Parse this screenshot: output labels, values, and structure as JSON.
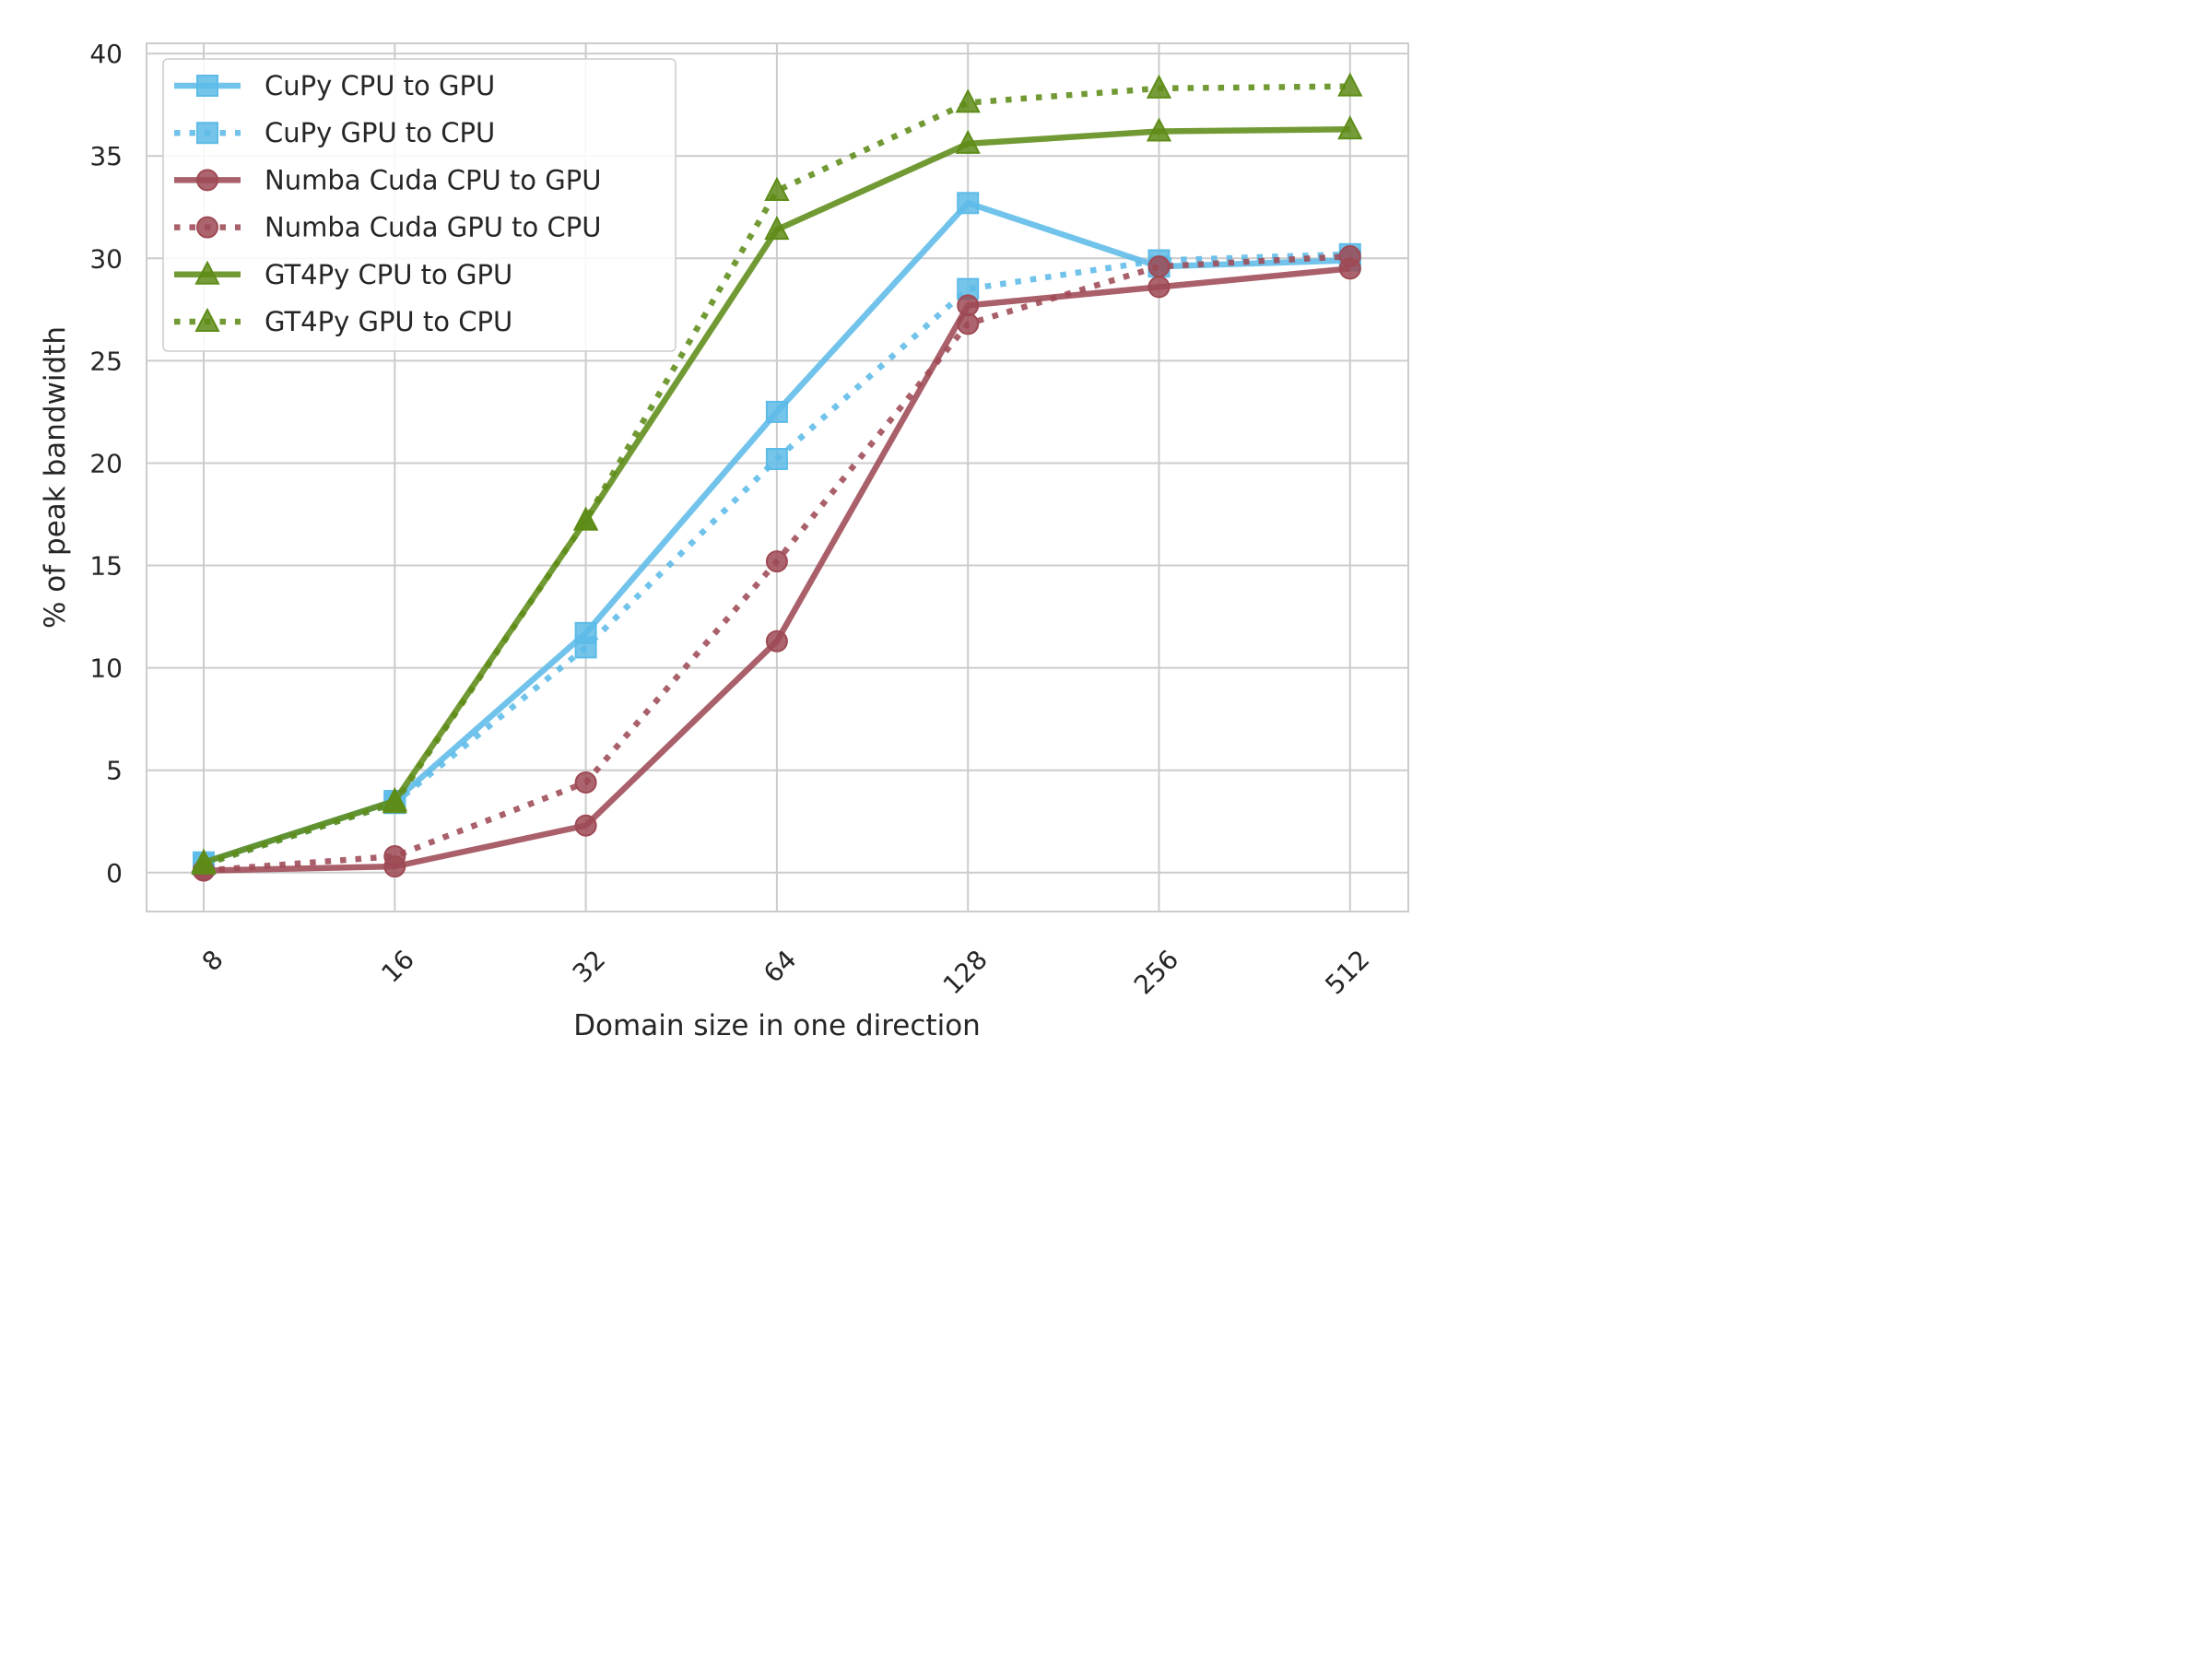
{
  "chart_data": {
    "type": "line",
    "xlabel": "Domain size in one direction",
    "ylabel": "% of peak bandwidth",
    "categories": [
      "8",
      "16",
      "32",
      "64",
      "128",
      "256",
      "512"
    ],
    "yticks": [
      "0",
      "5",
      "10",
      "15",
      "20",
      "25",
      "30",
      "35",
      "40"
    ],
    "ylim": [
      -1.9,
      40.5
    ],
    "grid": true,
    "legend_position": "top-left",
    "series": [
      {
        "name": "CuPy CPU to GPU",
        "values": [
          0.5,
          3.5,
          11.7,
          22.5,
          32.7,
          29.6,
          29.9
        ],
        "color": "#5dbbe8",
        "marker": "square",
        "style": "solid"
      },
      {
        "name": "CuPy GPU to CPU",
        "values": [
          0.4,
          3.4,
          11.0,
          20.2,
          28.5,
          29.9,
          30.2
        ],
        "color": "#5dbbe8",
        "marker": "square",
        "style": "dotted"
      },
      {
        "name": "Numba Cuda CPU to GPU",
        "values": [
          0.1,
          0.3,
          2.3,
          11.3,
          27.7,
          28.6,
          29.5
        ],
        "color": "#9e4a55",
        "marker": "circle",
        "style": "solid"
      },
      {
        "name": "Numba Cuda GPU to CPU",
        "values": [
          0.1,
          0.8,
          4.4,
          15.2,
          26.8,
          29.6,
          30.1
        ],
        "color": "#9e4a55",
        "marker": "circle",
        "style": "dotted"
      },
      {
        "name": "GT4Py CPU to GPU",
        "values": [
          0.5,
          3.5,
          17.2,
          31.4,
          35.6,
          36.2,
          36.3
        ],
        "color": "#5e8c18",
        "marker": "triangle",
        "style": "solid"
      },
      {
        "name": "GT4Py GPU to CPU",
        "values": [
          0.4,
          3.4,
          17.2,
          33.3,
          37.6,
          38.3,
          38.4
        ],
        "color": "#5e8c18",
        "marker": "triangle",
        "style": "dotted"
      }
    ]
  }
}
